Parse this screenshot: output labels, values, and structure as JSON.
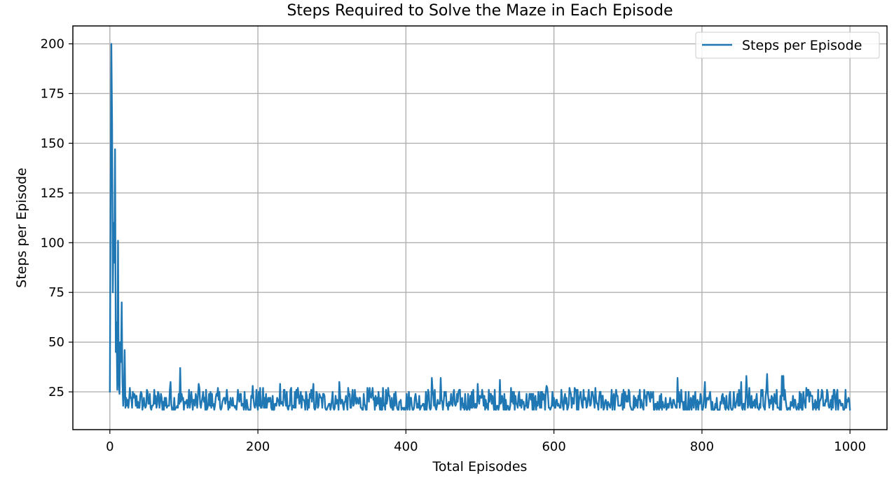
{
  "chart_data": {
    "type": "line",
    "title": "Steps Required to Solve the Maze in Each Episode",
    "xlabel": "Total Episodes",
    "ylabel": "Steps per Episode",
    "xlim": [
      -50,
      1050
    ],
    "ylim": [
      6,
      209
    ],
    "xticks": [
      0,
      200,
      400,
      600,
      800,
      1000
    ],
    "xtick_labels": [
      "0",
      "200",
      "400",
      "600",
      "800",
      "1000"
    ],
    "yticks": [
      25,
      50,
      75,
      100,
      125,
      150,
      175,
      200
    ],
    "ytick_labels": [
      "25",
      "50",
      "75",
      "100",
      "125",
      "150",
      "175",
      "200"
    ],
    "grid": true,
    "legend_position": "upper right",
    "colors": {
      "series": "#1f77b4",
      "grid": "#b0b0b0",
      "axes": "#000000"
    },
    "series": [
      {
        "name": "Steps per Episode",
        "color": "#1f77b4",
        "early_points": [
          [
            0,
            25
          ],
          [
            1,
            120
          ],
          [
            2,
            200
          ],
          [
            3,
            160
          ],
          [
            4,
            75
          ],
          [
            5,
            110
          ],
          [
            6,
            90
          ],
          [
            7,
            147
          ],
          [
            8,
            45
          ],
          [
            9,
            60
          ],
          [
            10,
            26
          ],
          [
            11,
            101
          ],
          [
            12,
            30
          ],
          [
            13,
            24
          ],
          [
            14,
            50
          ],
          [
            15,
            40
          ],
          [
            16,
            70
          ],
          [
            17,
            30
          ],
          [
            18,
            18
          ],
          [
            19,
            25
          ],
          [
            20,
            46
          ],
          [
            21,
            17
          ],
          [
            22,
            22
          ],
          [
            23,
            18
          ]
        ],
        "spikes": [
          [
            82,
            30
          ],
          [
            95,
            37
          ],
          [
            120,
            29
          ],
          [
            193,
            28
          ],
          [
            230,
            29
          ],
          [
            275,
            29
          ],
          [
            310,
            30
          ],
          [
            435,
            32
          ],
          [
            447,
            32
          ],
          [
            497,
            29
          ],
          [
            527,
            31
          ],
          [
            590,
            28
          ],
          [
            767,
            32
          ],
          [
            804,
            30
          ],
          [
            853,
            30
          ],
          [
            860,
            33
          ],
          [
            888,
            34
          ],
          [
            908,
            33
          ],
          [
            910,
            33
          ]
        ],
        "final_point": [
          1000,
          16
        ],
        "noise_range": [
          16,
          27
        ]
      }
    ]
  }
}
